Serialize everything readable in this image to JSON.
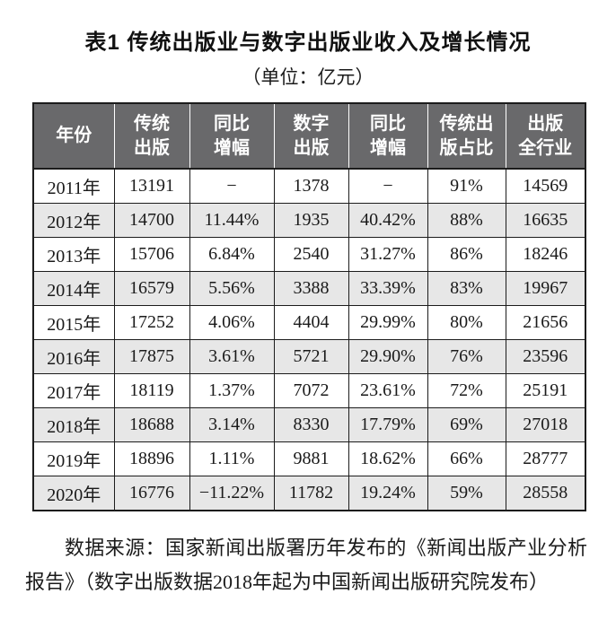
{
  "title": "表1 传统出版业与数字出版业收入及增长情况",
  "subtitle": "（单位：亿元）",
  "table": {
    "headers": [
      {
        "lines": [
          "年份"
        ]
      },
      {
        "lines": [
          "传统",
          "出版"
        ]
      },
      {
        "lines": [
          "同比",
          "增幅"
        ]
      },
      {
        "lines": [
          "数字",
          "出版"
        ]
      },
      {
        "lines": [
          "同比",
          "增幅"
        ]
      },
      {
        "lines": [
          "传统出",
          "版占比"
        ]
      },
      {
        "lines": [
          "出版",
          "全行业"
        ]
      }
    ],
    "rows": [
      [
        "2011年",
        "13191",
        "−",
        "1378",
        "−",
        "91%",
        "14569"
      ],
      [
        "2012年",
        "14700",
        "11.44%",
        "1935",
        "40.42%",
        "88%",
        "16635"
      ],
      [
        "2013年",
        "15706",
        "6.84%",
        "2540",
        "31.27%",
        "86%",
        "18246"
      ],
      [
        "2014年",
        "16579",
        "5.56%",
        "3388",
        "33.39%",
        "83%",
        "19967"
      ],
      [
        "2015年",
        "17252",
        "4.06%",
        "4404",
        "29.99%",
        "80%",
        "21656"
      ],
      [
        "2016年",
        "17875",
        "3.61%",
        "5721",
        "29.90%",
        "76%",
        "23596"
      ],
      [
        "2017年",
        "18119",
        "1.37%",
        "7072",
        "23.61%",
        "72%",
        "25191"
      ],
      [
        "2018年",
        "18688",
        "3.14%",
        "8330",
        "17.79%",
        "69%",
        "27018"
      ],
      [
        "2019年",
        "18896",
        "1.11%",
        "9881",
        "18.62%",
        "66%",
        "28777"
      ],
      [
        "2020年",
        "16776",
        "−11.22%",
        "11782",
        "19.24%",
        "59%",
        "28558"
      ]
    ]
  },
  "source_note": "数据来源：国家新闻出版署历年发布的《新闻出版产业分析报告》（数字出版数据2018年起为中国新闻出版研究院发布）",
  "colors": {
    "header_bg": "#69696b",
    "header_text": "#ffffff",
    "row_alt_bg": "#e7e7e7",
    "border": "#1c1c1c",
    "text": "#1a1a1a"
  }
}
